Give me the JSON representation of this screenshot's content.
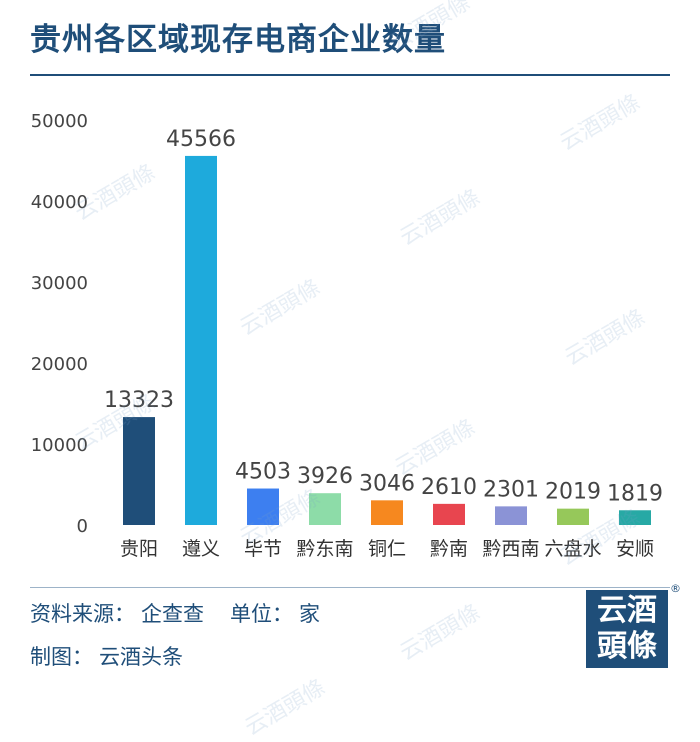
{
  "title": "贵州各区域现存电商企业数量",
  "chart_data": {
    "type": "bar",
    "categories": [
      "贵阳",
      "遵义",
      "毕节",
      "黔东南",
      "铜仁",
      "黔南",
      "黔西南",
      "六盘水",
      "安顺"
    ],
    "values": [
      13323,
      45566,
      4503,
      3926,
      3046,
      2610,
      2301,
      2019,
      1819
    ],
    "colors": [
      "#1f4e79",
      "#1eaadc",
      "#3d7ff0",
      "#8ddca8",
      "#f6881f",
      "#e8454f",
      "#8b93d6",
      "#96c85a",
      "#27a9a5"
    ],
    "ylim": [
      0,
      50000
    ],
    "yticks": [
      0,
      10000,
      20000,
      30000,
      40000,
      50000
    ],
    "grid": false,
    "legend": "none"
  },
  "footer": {
    "source_label": "资料来源：",
    "source_value": "企查查",
    "unit_label": "单位：",
    "unit_value": "家",
    "made_label": "制图：",
    "made_value": "云酒头条"
  },
  "logo": {
    "line1": "云酒",
    "line2": "頭條",
    "registered": "®"
  },
  "watermark_text": "云酒頭條"
}
